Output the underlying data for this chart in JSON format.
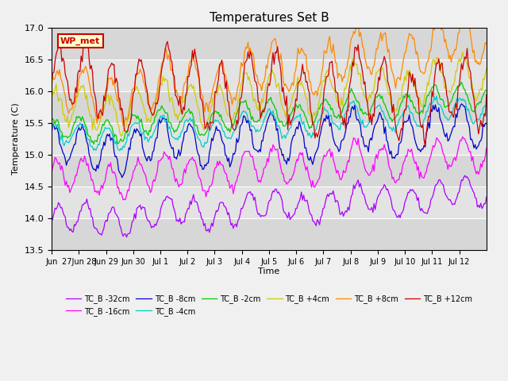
{
  "title": "Temperatures Set B",
  "xlabel": "Time",
  "ylabel": "Temperature (C)",
  "ylim": [
    13.5,
    17.0
  ],
  "yticks": [
    13.5,
    14.0,
    14.5,
    15.0,
    15.5,
    16.0,
    16.5,
    17.0
  ],
  "background_color": "#f0f0f0",
  "plot_bg_color": "#e8e8e8",
  "wp_met_label": "WP_met",
  "wp_met_bg": "#ffffcc",
  "wp_met_border": "#cc0000",
  "wp_met_text": "#cc0000",
  "xtick_labels": [
    "Jun",
    "27Jun 28",
    "Jun 29",
    "Jun 30",
    "Jul 1",
    "Jul 2",
    "Jul 3",
    "Jul 4",
    "Jul 5",
    "Jul 6",
    "Jul 7",
    "Jul 8",
    "Jul 9",
    "Jul 10",
    "Jul 11",
    "Jul 12"
  ],
  "band_edges": [
    13.5,
    14.0,
    14.5,
    15.0,
    15.5,
    16.0,
    16.5,
    17.0
  ],
  "series": [
    {
      "label": "TC_B -32cm",
      "color": "#aa00ff",
      "base": 13.93,
      "amplitude": 0.22,
      "trend": 0.0012,
      "phase": 0.0
    },
    {
      "label": "TC_B -16cm",
      "color": "#ff00ff",
      "base": 14.6,
      "amplitude": 0.25,
      "trend": 0.001,
      "phase": 0.5
    },
    {
      "label": "TC_B -8cm",
      "color": "#0000cc",
      "base": 15.05,
      "amplitude": 0.3,
      "trend": 0.001,
      "phase": 1.0
    },
    {
      "label": "TC_B -4cm",
      "color": "#00cccc",
      "base": 15.25,
      "amplitude": 0.18,
      "trend": 0.0012,
      "phase": 1.2
    },
    {
      "label": "TC_B -2cm",
      "color": "#00cc00",
      "base": 15.35,
      "amplitude": 0.18,
      "trend": 0.0015,
      "phase": 1.3
    },
    {
      "label": "TC_B +4cm",
      "color": "#cccc00",
      "base": 15.65,
      "amplitude": 0.3,
      "trend": 0.0015,
      "phase": 0.8
    },
    {
      "label": "TC_B +8cm",
      "color": "#ff8800",
      "base": 15.85,
      "amplitude": 0.35,
      "trend": 0.0025,
      "phase": 0.3
    },
    {
      "label": "TC_B +12cm",
      "color": "#cc0000",
      "base": 16.1,
      "amplitude": 0.5,
      "trend": -0.0005,
      "phase": 0.0
    }
  ],
  "n_points": 384,
  "n_days": 16
}
